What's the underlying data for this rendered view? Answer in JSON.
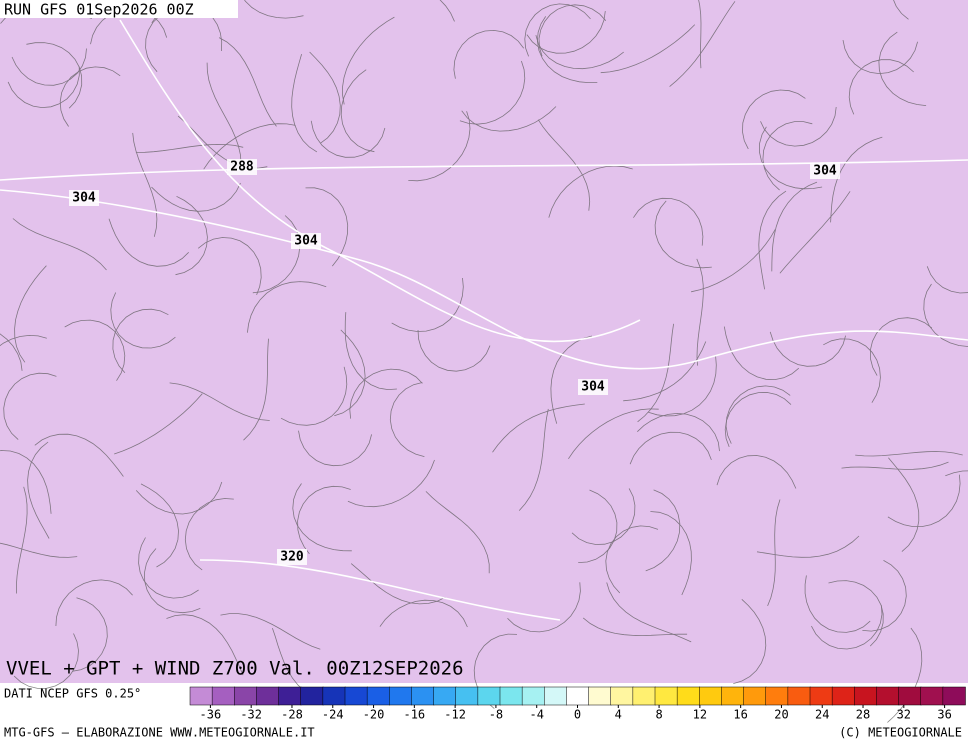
{
  "header": {
    "run": "RUN GFS 01Sep2026 00Z"
  },
  "map": {
    "title": "VVEL + GPT + WIND Z700 Val. 00Z12SEP2026",
    "contours": [
      {
        "label": 288
      },
      {
        "label": 304
      },
      {
        "label": 304
      },
      {
        "label": 304
      },
      {
        "label": 304
      },
      {
        "label": 320
      }
    ]
  },
  "colorbar": {
    "source": "DATI NCEP GFS 0.25°",
    "lim": [
      -38,
      38
    ],
    "ticks": [
      -36,
      -32,
      -28,
      -24,
      -20,
      -16,
      -12,
      -8,
      -4,
      0,
      4,
      8,
      12,
      16,
      20,
      24,
      28,
      32,
      36
    ],
    "colors": [
      "#c48bd6",
      "#a55fc0",
      "#8a45a8",
      "#6e2f9a",
      "#3e1f96",
      "#22239e",
      "#1634b8",
      "#1748d4",
      "#1a5fe6",
      "#2078ee",
      "#2b91f2",
      "#37a9f3",
      "#46c0f1",
      "#5cd6ee",
      "#7be6ee",
      "#a6f1f2",
      "#d4f8f8",
      "#ffffff",
      "#fffbd0",
      "#fff6a0",
      "#fff070",
      "#ffe840",
      "#ffdc1a",
      "#ffca0f",
      "#ffb40c",
      "#ff9a0c",
      "#ff7d0d",
      "#f95c10",
      "#ee3b14",
      "#de2318",
      "#c8141f",
      "#b40f2e",
      "#a00c3e",
      "#a0104f",
      "#8e0c5a"
    ]
  },
  "footer": {
    "left": "MTG-GFS — ELABORAZIONE WWW.METEOGIORNALE.IT",
    "right": "(C) METEOGIORNALE"
  }
}
